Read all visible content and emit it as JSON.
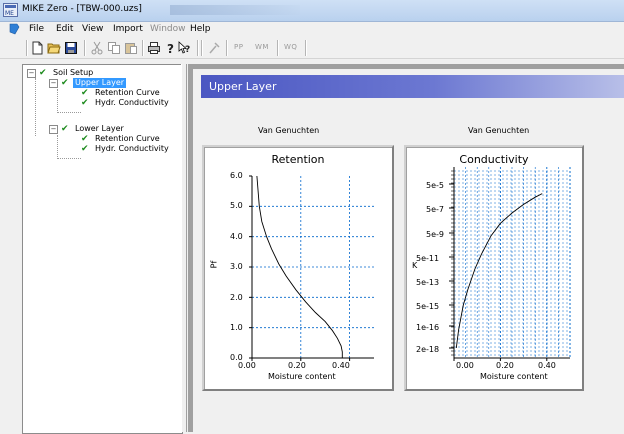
{
  "window": {
    "title": "MIKE Zero - [TBW-000.uzs]"
  },
  "menu": [
    {
      "label": "File"
    },
    {
      "label": "Edit"
    },
    {
      "label": "View"
    },
    {
      "label": "Import"
    },
    {
      "label": "Window",
      "dimmed": true
    },
    {
      "label": "Help"
    }
  ],
  "toolbar": {
    "icons": [
      "new-file-icon",
      "open-folder-icon",
      "save-icon",
      "cut-icon",
      "copy-icon",
      "paste-icon",
      "print-icon",
      "help-icon",
      "context-help-icon",
      "tool-icon"
    ],
    "text_buttons": [
      "PP",
      "WM",
      "WQ"
    ]
  },
  "tree": {
    "nodes": [
      {
        "label": "Soil Setup"
      },
      {
        "label": "Upper Layer",
        "selected": true
      },
      {
        "label": "Retention Curve"
      },
      {
        "label": "Hydr. Conductivity"
      },
      {
        "label": "Lower Layer"
      },
      {
        "label": "Retention Curve"
      },
      {
        "label": "Hydr. Conductivity"
      }
    ]
  },
  "panel": {
    "header": "Upper Layer"
  },
  "charts": [
    {
      "model_label": "Van Genuchten",
      "title": "Retention",
      "ylabel": "Pf",
      "xlabel": "Moisture content",
      "yticks": [
        "6.0",
        "5.0",
        "4.0",
        "3.0",
        "2.0",
        "1.0",
        "0.0"
      ],
      "xticks": [
        "0.00",
        "0.20",
        "0.40"
      ]
    },
    {
      "model_label": "Van Genuchten",
      "title": "Conductivity",
      "ylabel": "K",
      "xlabel": "Moisture content",
      "yticks": [
        "5e-5",
        "5e-7",
        "5e-9",
        "5e-11",
        "5e-13",
        "5e-15",
        "1e-16",
        "2e-18"
      ],
      "xticks": [
        "0.00",
        "0.20",
        "0.40"
      ]
    }
  ],
  "chart_data": [
    {
      "type": "line",
      "title": "Retention",
      "xlabel": "Moisture content",
      "ylabel": "Pf",
      "xlim": [
        0,
        0.5
      ],
      "ylim": [
        0,
        6
      ],
      "grid": true,
      "x": [
        0.02,
        0.03,
        0.04,
        0.06,
        0.08,
        0.11,
        0.14,
        0.18,
        0.22,
        0.26,
        0.3,
        0.33,
        0.35,
        0.365,
        0.37,
        0.37
      ],
      "y": [
        6.0,
        5.0,
        4.5,
        4.0,
        3.6,
        3.1,
        2.7,
        2.25,
        1.85,
        1.5,
        1.2,
        0.9,
        0.65,
        0.4,
        0.2,
        0.0
      ]
    },
    {
      "type": "line",
      "title": "Conductivity",
      "xlabel": "Moisture content",
      "ylabel": "K",
      "xlim": [
        0,
        0.5
      ],
      "grid": true,
      "yscale": "log",
      "y_tick_values": [
        5e-05,
        5e-07,
        5e-09,
        5e-11,
        5e-13,
        5e-15,
        1e-16,
        2e-18
      ],
      "x": [
        0.01,
        0.02,
        0.04,
        0.06,
        0.09,
        0.12,
        0.16,
        0.2,
        0.25,
        0.3,
        0.35,
        0.38
      ],
      "y": [
        2e-18,
        5e-17,
        5e-15,
        1e-13,
        5e-12,
        1e-10,
        3e-09,
        3e-08,
        2e-07,
        1e-06,
        4e-06,
        8e-06
      ]
    }
  ],
  "colors": {
    "header_start": "#4b57c2",
    "grid": "#0066cc",
    "selection": "#3399ff",
    "check": "#1c8a1c"
  }
}
